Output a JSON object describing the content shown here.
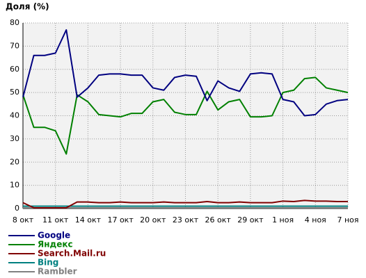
{
  "chart_data": {
    "type": "line",
    "title": "Доля (%)",
    "categories": [
      "8 окт",
      null,
      null,
      "11 окт",
      null,
      null,
      "14 окт",
      null,
      null,
      "17 окт",
      null,
      null,
      "20 окт",
      null,
      null,
      "23 окт",
      null,
      null,
      "26 окт",
      null,
      null,
      "29 окт",
      null,
      null,
      "1 ноя",
      null,
      null,
      "4 ноя",
      null,
      null,
      "7 ноя"
    ],
    "series": [
      {
        "name": "Google",
        "color": "#000080",
        "values": [
          48,
          66,
          66,
          67,
          77,
          48,
          52,
          57.5,
          58,
          58,
          57.5,
          57.5,
          52,
          51,
          56.5,
          57.5,
          57,
          46.5,
          55,
          52,
          50.5,
          58,
          58.5,
          58,
          47,
          46,
          40,
          40.5,
          45,
          46.5,
          47
        ]
      },
      {
        "name": "Яндекс",
        "color": "#008000",
        "values": [
          49,
          35,
          35,
          33.5,
          23.5,
          49,
          46,
          40.5,
          40,
          39.5,
          41,
          41,
          46,
          47,
          41.5,
          40.5,
          40.5,
          50.5,
          42.5,
          46,
          47,
          39.5,
          39.5,
          40,
          50,
          51,
          56,
          56.5,
          52,
          51,
          50
        ]
      },
      {
        "name": "Search.Mail.ru",
        "color": "#800000",
        "values": [
          2.5,
          0.3,
          0.3,
          0.3,
          0.3,
          2.8,
          2.8,
          2.5,
          2.5,
          2.8,
          2.5,
          2.5,
          2.5,
          2.8,
          2.5,
          2.5,
          2.5,
          3,
          2.5,
          2.5,
          2.8,
          2.5,
          2.5,
          2.5,
          3.2,
          3,
          3.5,
          3.2,
          3.2,
          3,
          3
        ]
      },
      {
        "name": "Bing",
        "color": "#008080",
        "values": [
          1,
          1,
          1,
          1,
          1,
          1,
          1,
          1,
          1,
          1,
          1,
          1,
          1,
          1,
          1,
          1,
          1,
          1,
          1,
          1,
          1,
          1,
          1,
          1,
          1,
          1,
          1,
          1,
          1,
          1,
          1
        ]
      },
      {
        "name": "Rambler",
        "color": "#808080",
        "values": [
          0.3,
          0.3,
          0.3,
          0.3,
          0.3,
          0.3,
          0.3,
          0.3,
          0.3,
          0.3,
          0.3,
          0.3,
          0.3,
          0.3,
          0.3,
          0.3,
          0.3,
          0.3,
          0.3,
          0.3,
          0.3,
          0.3,
          0.3,
          0.3,
          0.3,
          0.3,
          0.3,
          0.3,
          0.3,
          0.3,
          0.3
        ]
      }
    ],
    "ylim": [
      0,
      80
    ],
    "yticks": [
      0,
      10,
      20,
      30,
      40,
      50,
      60,
      70,
      80
    ],
    "grid": true
  }
}
